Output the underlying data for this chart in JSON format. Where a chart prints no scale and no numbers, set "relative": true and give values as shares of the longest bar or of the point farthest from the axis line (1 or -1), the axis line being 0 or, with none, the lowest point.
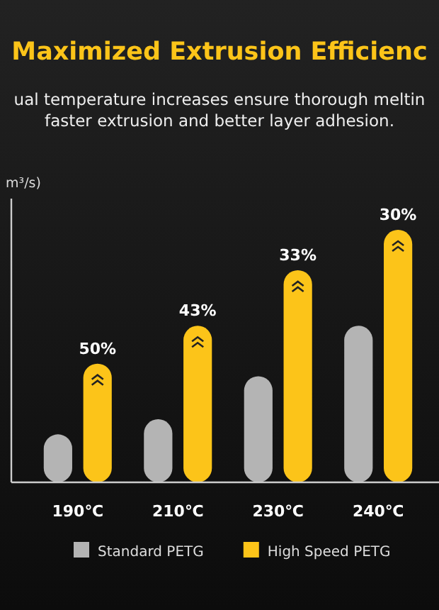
{
  "chart_data": {
    "type": "bar",
    "title": "Maximized Extrusion Efficienc",
    "subtitle": "ual temperature increases ensure thorough meltin\nfaster extrusion and better layer adhesion.",
    "categories": [
      "190℃",
      "210℃",
      "230℃",
      "240℃"
    ],
    "relative": true,
    "series": [
      {
        "name": "Standard PETG",
        "color": "#b4b4b4",
        "values": [
          0.19,
          0.25,
          0.42,
          0.62
        ]
      },
      {
        "name": "High Speed PETG",
        "color": "#fcc419",
        "values": [
          0.47,
          0.62,
          0.84,
          1
        ]
      }
    ],
    "annotations": [
      "m³/s)",
      {
        "text": "50%",
        "x": "190℃",
        "y": 0.47
      },
      {
        "text": "43%",
        "x": "210℃",
        "y": 0.62
      },
      {
        "text": "33%",
        "x": "230℃",
        "y": 0.84
      },
      {
        "text": "30%",
        "x": "240℃",
        "y": 1
      }
    ],
    "legend": "bottom"
  }
}
